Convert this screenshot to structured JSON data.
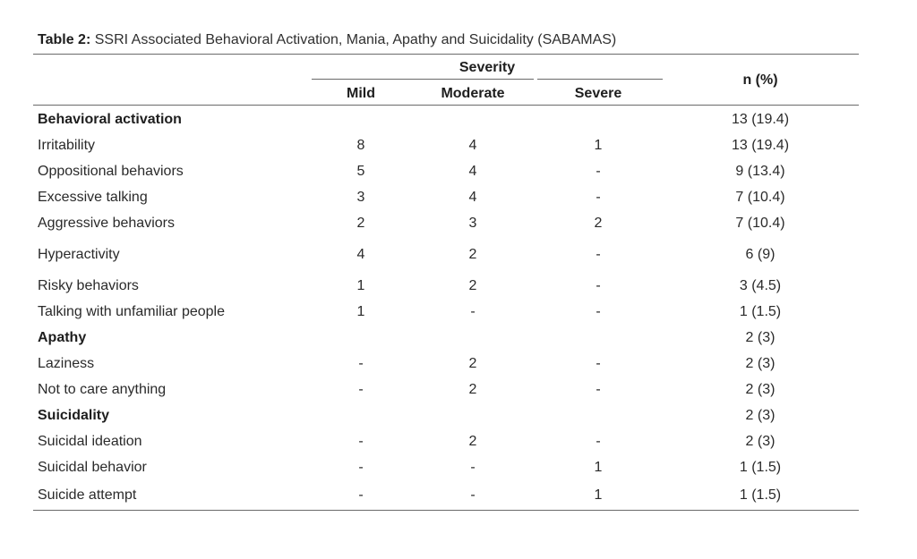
{
  "caption": {
    "label": "Table 2:",
    "text": "SSRI Associated Behavioral Activation, Mania, Apathy and Suicidality (SABAMAS)"
  },
  "header": {
    "severity": "Severity",
    "mild": "Mild",
    "moderate": "Moderate",
    "severe": "Severe",
    "n_pct": "n (%)"
  },
  "rows": [
    {
      "label": "Behavioral activation",
      "group": true,
      "mild": "",
      "moderate": "",
      "severe": "",
      "n": "13 (19.4)"
    },
    {
      "label": "Irritability",
      "mild": "8",
      "moderate": "4",
      "severe": "1",
      "n": "13 (19.4)"
    },
    {
      "label": "Oppositional behaviors",
      "mild": "5",
      "moderate": "4",
      "severe": "-",
      "n": "9 (13.4)"
    },
    {
      "label": "Excessive talking",
      "mild": "3",
      "moderate": "4",
      "severe": "-",
      "n": "7 (10.4)"
    },
    {
      "label": "Aggressive behaviors",
      "mild": "2",
      "moderate": "3",
      "severe": "2",
      "n": "7 (10.4)"
    },
    {
      "label": "Hyperactivity",
      "mild": "4",
      "moderate": "2",
      "severe": "-",
      "n": "6 (9)"
    },
    {
      "label": "Risky behaviors",
      "mild": "1",
      "moderate": "2",
      "severe": "-",
      "n": "3 (4.5)"
    },
    {
      "label": "Talking with unfamiliar people",
      "mild": "1",
      "moderate": "-",
      "severe": "-",
      "n": "1 (1.5)"
    },
    {
      "label": "Apathy",
      "group": true,
      "mild": "",
      "moderate": "",
      "severe": "",
      "n": "2 (3)"
    },
    {
      "label": "Laziness",
      "mild": "-",
      "moderate": "2",
      "severe": "-",
      "n": "2 (3)"
    },
    {
      "label": "Not to care anything",
      "mild": "-",
      "moderate": "2",
      "severe": "-",
      "n": "2 (3)"
    },
    {
      "label": "Suicidality",
      "group": true,
      "mild": "",
      "moderate": "",
      "severe": "",
      "n": "2 (3)"
    },
    {
      "label": "Suicidal ideation",
      "mild": "-",
      "moderate": "2",
      "severe": "-",
      "n": "2 (3)"
    },
    {
      "label": "Suicidal behavior",
      "mild": "-",
      "moderate": "-",
      "severe": "1",
      "n": "1 (1.5)"
    },
    {
      "label": "Suicide attempt",
      "mild": "-",
      "moderate": "-",
      "severe": "1",
      "n": "1 (1.5)"
    }
  ]
}
